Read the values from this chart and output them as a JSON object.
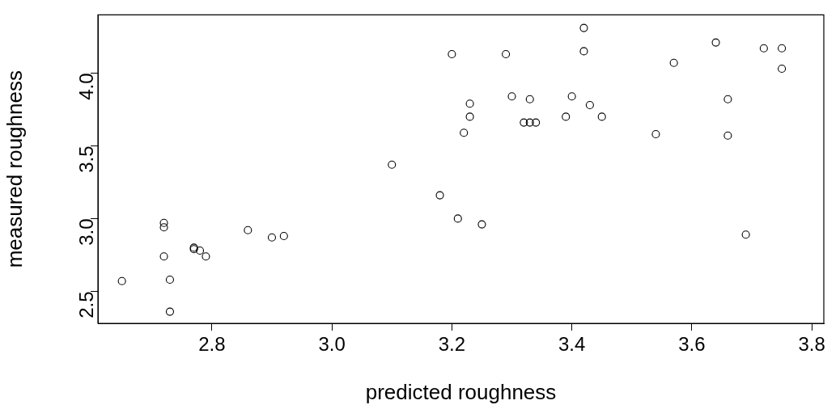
{
  "chart_data": {
    "type": "scatter",
    "xlabel": "predicted roughness",
    "ylabel": "measured roughness",
    "xlim": [
      2.61,
      3.82
    ],
    "ylim": [
      2.28,
      4.4
    ],
    "xticks": [
      2.8,
      {
        "value": 3,
        "label": "3.0"
      },
      3.2,
      3.4,
      3.6,
      3.8
    ],
    "yticks": [
      2.5,
      {
        "value": 3,
        "label": "3.0"
      },
      3.5,
      {
        "value": 4,
        "label": "4.0"
      }
    ],
    "grid": false,
    "legend": false,
    "marker": "circle",
    "series": [
      {
        "color": "#000000",
        "x": [
          2.65,
          2.72,
          2.72,
          2.72,
          2.73,
          2.73,
          2.77,
          2.77,
          2.78,
          2.79,
          2.86,
          2.9,
          2.92,
          3.1,
          3.18,
          3.2,
          3.21,
          3.22,
          3.23,
          3.23,
          3.25,
          3.29,
          3.3,
          3.32,
          3.33,
          3.33,
          3.34,
          3.39,
          3.4,
          3.42,
          3.42,
          3.43,
          3.45,
          3.54,
          3.57,
          3.64,
          3.66,
          3.66,
          3.69,
          3.72,
          3.75,
          3.75
        ],
        "values": [
          2.57,
          2.97,
          2.94,
          2.74,
          2.58,
          2.36,
          2.8,
          2.79,
          2.78,
          2.74,
          2.92,
          2.87,
          2.88,
          3.37,
          3.16,
          4.13,
          3.0,
          3.59,
          3.7,
          3.79,
          2.96,
          4.13,
          3.84,
          3.66,
          3.66,
          3.82,
          3.66,
          3.7,
          3.84,
          4.15,
          4.31,
          3.78,
          3.7,
          3.58,
          4.07,
          4.21,
          3.57,
          3.82,
          2.89,
          4.17,
          4.17,
          4.03
        ]
      }
    ]
  }
}
